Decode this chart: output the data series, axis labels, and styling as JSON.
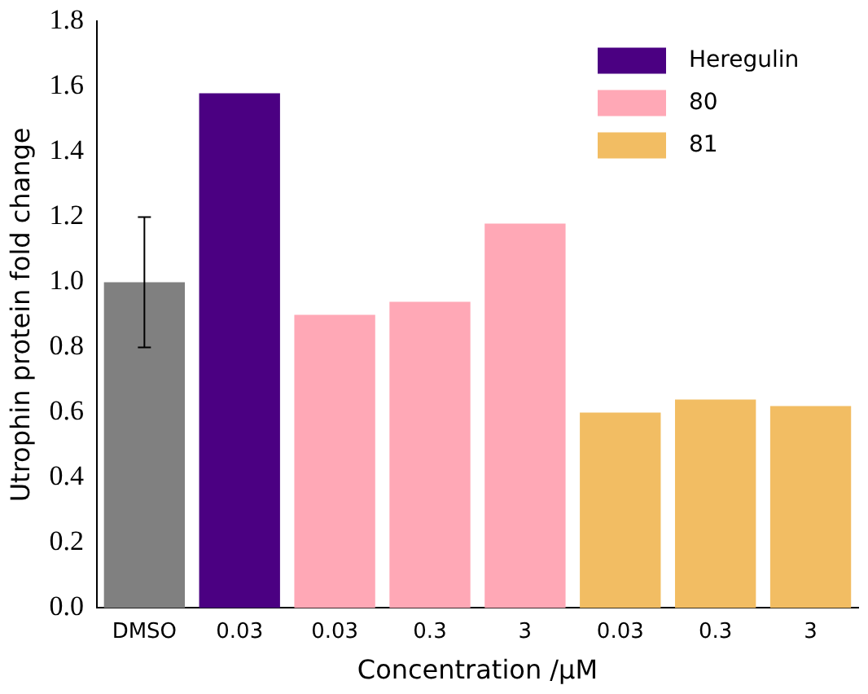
{
  "chart_data": {
    "type": "bar",
    "xlabel": "Concentration /μM",
    "ylabel": "Utrophin protein fold change",
    "categories": [
      "DMSO",
      "0.03",
      "0.03",
      "0.3",
      "3",
      "0.03",
      "0.3",
      "3"
    ],
    "series": [
      {
        "color": "#808080",
        "values": [
          1.0,
          null,
          null,
          null,
          null,
          null,
          null,
          null
        ],
        "errors": [
          0.2,
          null,
          null,
          null,
          null,
          null,
          null,
          null
        ]
      },
      {
        "name": "Heregulin",
        "color": "#4b0082",
        "values": [
          null,
          1.58,
          null,
          null,
          null,
          null,
          null,
          null
        ]
      },
      {
        "name": "80",
        "color": "#ffa8b6",
        "values": [
          null,
          null,
          0.9,
          0.94,
          1.18,
          null,
          null,
          null
        ]
      },
      {
        "name": "81",
        "color": "#f2bd63",
        "values": [
          null,
          null,
          null,
          null,
          null,
          0.6,
          0.64,
          0.62
        ]
      }
    ],
    "ylim": [
      0,
      1.8
    ],
    "yticks": [
      {
        "value": 0,
        "label": "0.0"
      },
      0.2,
      0.4,
      0.6,
      0.8,
      {
        "value": 1,
        "label": "1.0"
      },
      1.2,
      1.4,
      1.6,
      1.8
    ],
    "legend": "top right",
    "grid": false
  }
}
